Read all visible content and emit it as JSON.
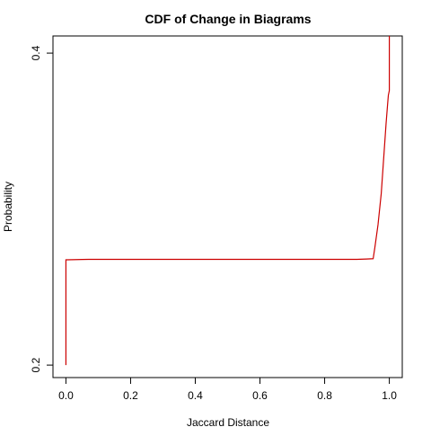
{
  "chart_data": {
    "type": "line",
    "title": "CDF of Change in Biagrams",
    "xlabel": "Jaccard Distance",
    "ylabel": "Probability",
    "xlim": [
      -0.04,
      1.04
    ],
    "ylim": [
      0.192,
      0.411
    ],
    "x_ticks": [
      0.0,
      0.2,
      0.4,
      0.6,
      0.8,
      1.0
    ],
    "x_tick_labels": [
      "0.0",
      "0.2",
      "0.4",
      "0.6",
      "0.8",
      "1.0"
    ],
    "y_ticks": [
      0.2,
      0.4
    ],
    "y_tick_labels": [
      "0.2",
      "0.4"
    ],
    "grid": false,
    "legend": "none",
    "series": [
      {
        "color": "#cc0000",
        "x": [
          0.0,
          0.0,
          0.003,
          0.05,
          0.07,
          0.1,
          0.3,
          0.5,
          0.7,
          0.9,
          0.93,
          0.95,
          0.955,
          0.965,
          0.975,
          0.98,
          0.985,
          0.99,
          0.995,
          0.997,
          1.0,
          1.0
        ],
        "y": [
          0.2,
          0.2675,
          0.2675,
          0.2677,
          0.2678,
          0.2678,
          0.2678,
          0.2678,
          0.2678,
          0.2678,
          0.268,
          0.2682,
          0.275,
          0.29,
          0.31,
          0.325,
          0.34,
          0.355,
          0.368,
          0.373,
          0.376,
          0.411
        ]
      }
    ]
  }
}
